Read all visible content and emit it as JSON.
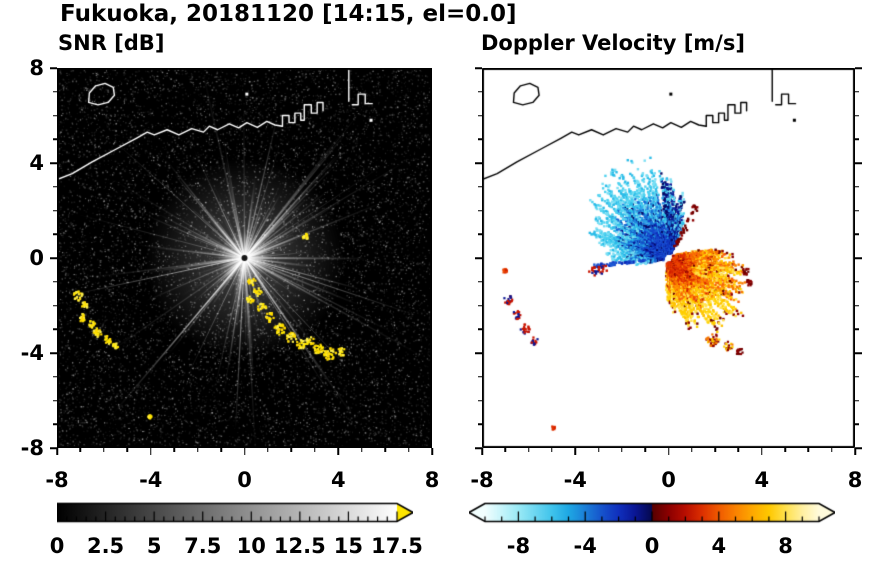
{
  "page_title": "Fukuoka, 20181120 [14:15, el=0.0]",
  "panels": {
    "snr": {
      "title": "SNR [dB]"
    },
    "doppler": {
      "title": "Doppler Velocity [m/s]"
    }
  },
  "axes": {
    "xlim": [
      -8,
      8
    ],
    "ylim": [
      -8,
      8
    ],
    "x_tick_values": [
      -8,
      -4,
      0,
      4,
      8
    ],
    "x_tick_labels": [
      "-8",
      "-4",
      "0",
      "4",
      "8"
    ],
    "y_tick_values": [
      8,
      4,
      0,
      -4,
      -8
    ],
    "y_tick_labels": [
      "8",
      "4",
      "0",
      "-4",
      "-8"
    ],
    "minor_tick_step": 1
  },
  "colorbars": {
    "snr": {
      "min": 0,
      "max": 17.5,
      "tick_values": [
        0,
        2.5,
        5,
        7.5,
        10,
        12.5,
        15,
        17.5
      ],
      "tick_labels": [
        "0",
        "2.5",
        "5",
        "7.5",
        "10",
        "12.5",
        "15",
        "17.5"
      ],
      "minor_step": 0.5,
      "gradient": [
        [
          0,
          "#000000"
        ],
        [
          1,
          "#ffffff"
        ]
      ],
      "over_arrow_color": "#ffe600"
    },
    "doppler": {
      "min": -10,
      "max": 10,
      "tick_values": [
        -8,
        -4,
        0,
        4,
        8
      ],
      "tick_labels": [
        "-8",
        "-4",
        "0",
        "4",
        "8"
      ],
      "minor_step": 1,
      "gradient": [
        [
          0,
          "#f2ffff"
        ],
        [
          0.1,
          "#9aeaf6"
        ],
        [
          0.2,
          "#40c4ec"
        ],
        [
          0.25,
          "#1fa8e4"
        ],
        [
          0.3,
          "#1b7fd8"
        ],
        [
          0.35,
          "#1653cc"
        ],
        [
          0.4,
          "#1030be"
        ],
        [
          0.45,
          "#0a1694"
        ],
        [
          0.499,
          "#05094f"
        ],
        [
          0.501,
          "#570000"
        ],
        [
          0.55,
          "#8c0000"
        ],
        [
          0.6,
          "#b80e00"
        ],
        [
          0.65,
          "#dc3000"
        ],
        [
          0.7,
          "#f05a00"
        ],
        [
          0.75,
          "#fa8200"
        ],
        [
          0.8,
          "#fea800"
        ],
        [
          0.85,
          "#ffc800"
        ],
        [
          0.9,
          "#ffe14e"
        ],
        [
          0.95,
          "#fff0a0"
        ],
        [
          1,
          "#fffbdc"
        ]
      ],
      "under_arrow_color": "#f2ffff",
      "over_arrow_color": "#fffbdc"
    }
  },
  "chart_data": {
    "type": "heatmap",
    "title": "Fukuoka, 20181120 [14:15, el=0.0]",
    "station": "Fukuoka",
    "date": "20181120",
    "time": "14:15",
    "elevation_deg": 0.0,
    "subplots": [
      {
        "name": "snr",
        "title": "SNR [dB]",
        "xlim": [
          -8,
          8
        ],
        "ylim": [
          -8,
          8
        ],
        "x_ticks": [
          -8,
          -4,
          0,
          4,
          8
        ],
        "y_ticks": [
          -8,
          -4,
          0,
          4,
          8
        ],
        "colorbar": {
          "min": 0,
          "max": 17.5,
          "ticks": [
            0,
            2.5,
            5,
            7.5,
            10,
            12.5,
            15,
            17.5
          ],
          "colormap": "grayscale black to white",
          "over_range": "yellow arrow"
        },
        "content": "Radar PPI on black background: speckle noise, bright gray beams radiating from radar at (0,0), white coastline of the bay along the top, strong yellow echoes (>17.5 dB) in a broken chain from about (0.3,-1) to (4.2,-4) and a cluster near the west edge from (-7.1,-1.6) to (-5.5,-3.7)"
      },
      {
        "name": "doppler",
        "title": "Doppler Velocity [m/s]",
        "xlim": [
          -8,
          8
        ],
        "ylim": [
          -8,
          8
        ],
        "x_ticks": [
          -8,
          -4,
          0,
          4,
          8
        ],
        "y_ticks": [
          -8,
          -4,
          0,
          4,
          8
        ],
        "colorbar": {
          "min": -10,
          "max": 10,
          "ticks": [
            -8,
            -4,
            0,
            4,
            8
          ],
          "colormap": "diverging cyan-blue-navy / darkred-red-orange-yellow",
          "under_range": "white arrow",
          "over_range": "pale yellow arrow"
        },
        "content": "Doppler velocity fans around radar at (0,0): negative velocities (cyan, blue, navy) in the N-NW-W sector; positive velocities (dark red, red, orange, yellow) in the E-SE-S sector; mixed red/navy echo cluster near the west edge; black coastline along the top"
      }
    ],
    "render": {
      "coast": {
        "main": [
          [
            -8,
            3.3
          ],
          [
            -7.35,
            3.55
          ],
          [
            -6.5,
            4.05
          ],
          [
            -5.45,
            4.6
          ],
          [
            -4.6,
            5.05
          ],
          [
            -4.15,
            5.3
          ],
          [
            -3.85,
            5.18
          ],
          [
            -3.3,
            5.4
          ],
          [
            -2.8,
            5.18
          ],
          [
            -2.25,
            5.45
          ],
          [
            -1.75,
            5.3
          ],
          [
            -1.5,
            5.55
          ],
          [
            -1.15,
            5.4
          ],
          [
            -0.65,
            5.65
          ],
          [
            -0.25,
            5.48
          ],
          [
            0.1,
            5.7
          ],
          [
            0.55,
            5.5
          ],
          [
            0.95,
            5.75
          ],
          [
            1.3,
            5.6
          ],
          [
            1.62,
            5.55
          ]
        ],
        "island": [
          [
            -6.65,
            6.55
          ],
          [
            -6.62,
            6.95
          ],
          [
            -6.35,
            7.25
          ],
          [
            -5.95,
            7.35
          ],
          [
            -5.6,
            7.18
          ],
          [
            -5.55,
            6.85
          ],
          [
            -5.82,
            6.55
          ],
          [
            -6.25,
            6.45
          ]
        ],
        "piers": [
          [
            [
              1.62,
              5.55
            ],
            [
              1.62,
              6.0
            ],
            [
              1.9,
              6.0
            ],
            [
              1.9,
              5.7
            ],
            [
              2.15,
              5.7
            ],
            [
              2.15,
              6.1
            ],
            [
              2.4,
              6.1
            ],
            [
              2.4,
              5.8
            ],
            [
              2.55,
              5.8
            ],
            [
              2.55,
              6.45
            ],
            [
              2.85,
              6.45
            ],
            [
              2.85,
              6.1
            ],
            [
              3.1,
              6.1
            ],
            [
              3.1,
              6.55
            ],
            [
              3.35,
              6.55
            ],
            [
              3.35,
              6.2
            ]
          ]
        ],
        "tower": [
          [
            4.45,
            6.6
          ],
          [
            4.45,
            7.9
          ]
        ],
        "right_shapes": [
          [
            4.6,
            6.45
          ],
          [
            4.85,
            6.45
          ],
          [
            4.85,
            6.9
          ],
          [
            5.15,
            6.9
          ],
          [
            5.15,
            6.5
          ],
          [
            5.45,
            6.5
          ]
        ],
        "specks": [
          [
            0.1,
            6.9
          ],
          [
            5.4,
            5.8
          ]
        ]
      },
      "snr": {
        "bg": "#000000",
        "coast_color": "#ffffff",
        "noise_dots": 11000,
        "ray_count": 210,
        "long_rays": [
          [
            304,
            150
          ],
          [
            267,
            172
          ],
          [
            230,
            148
          ],
          [
            192,
            178
          ],
          [
            345,
            120
          ],
          [
            48,
            140
          ],
          [
            130,
            110
          ]
        ],
        "echo_palette": [
          "#ffe600",
          "#ffd900",
          "#fff04d"
        ],
        "echo_chain": [
          [
            0.32,
            -1.0,
            0.16
          ],
          [
            0.55,
            -1.42,
            0.18
          ],
          [
            0.25,
            -1.75,
            0.15
          ],
          [
            0.75,
            -2.1,
            0.18
          ],
          [
            1.1,
            -2.5,
            0.2
          ],
          [
            1.5,
            -3.0,
            0.24
          ],
          [
            2.0,
            -3.35,
            0.22
          ],
          [
            2.4,
            -3.65,
            0.2
          ],
          [
            2.8,
            -3.5,
            0.18
          ],
          [
            3.15,
            -3.85,
            0.22
          ],
          [
            3.65,
            -4.05,
            0.26
          ],
          [
            4.15,
            -3.95,
            0.18
          ],
          [
            2.6,
            0.9,
            0.12
          ],
          [
            -4.04,
            -6.7,
            0.07
          ]
        ],
        "echo_left": [
          [
            -7.1,
            -1.6,
            0.2
          ],
          [
            -6.85,
            -2.0,
            0.16
          ],
          [
            -6.95,
            -2.5,
            0.18
          ],
          [
            -6.5,
            -2.8,
            0.16
          ],
          [
            -6.25,
            -3.15,
            0.2
          ],
          [
            -5.85,
            -3.45,
            0.18
          ],
          [
            -5.5,
            -3.7,
            0.12
          ]
        ]
      },
      "doppler": {
        "coast_color": "#000000",
        "blue_fan": {
          "a0": 62,
          "a1": 192,
          "rmin": 1.0,
          "rmax": 4.3,
          "skip": 0.14
        },
        "red_fan": {
          "a0": -95,
          "a1": 15,
          "rmin": 1.0,
          "rmax": 4.0,
          "skip": 0.16
        },
        "red_fan2": {
          "a0": -30,
          "a1": 12,
          "rmin": 1.2,
          "rmax": 3.4,
          "skip": 0.3
        },
        "palettes": {
          "cyan": [
            "#4ed2f0",
            "#2bbce8",
            "#7adff4"
          ],
          "midblue": [
            "#1e86de",
            "#2fa6e8",
            "#1767d2"
          ],
          "blue": [
            "#1545cc",
            "#0e2cb8",
            "#1e5ad4"
          ],
          "navy": [
            "#0a1694",
            "#060a66"
          ],
          "red": [
            "#e03000",
            "#d01e00",
            "#ee4a00"
          ],
          "orange": [
            "#f87800",
            "#ff9700",
            "#f8600a"
          ],
          "yellow": [
            "#ffd200",
            "#ffc200",
            "#ffe24e"
          ],
          "darkred": [
            "#8c0000",
            "#6e0000"
          ],
          "redblue": [
            "#c81400",
            "#0a1694",
            "#c81400"
          ],
          "mix": [
            "#ffd200",
            "#8c0000",
            "#f87800"
          ]
        },
        "left_cluster": [
          [
            -7.0,
            -0.55,
            0.1,
            "red"
          ],
          [
            -6.85,
            -1.75,
            0.2,
            "redblue"
          ],
          [
            -6.5,
            -2.4,
            0.18,
            "redblue"
          ],
          [
            -6.15,
            -3.0,
            0.2,
            "redblue"
          ],
          [
            -5.75,
            -3.5,
            0.16,
            "redblue"
          ],
          [
            -4.95,
            -7.15,
            0.08,
            "red"
          ]
        ],
        "detached": [
          [
            1.9,
            -3.45,
            0.28,
            "mix"
          ],
          [
            2.55,
            -3.7,
            0.2,
            "mix"
          ],
          [
            3.05,
            -3.95,
            0.16,
            "darkred"
          ],
          [
            3.3,
            -0.55,
            0.16,
            "darkred"
          ],
          [
            3.45,
            -1.05,
            0.13,
            "darkred"
          ]
        ]
      }
    }
  }
}
